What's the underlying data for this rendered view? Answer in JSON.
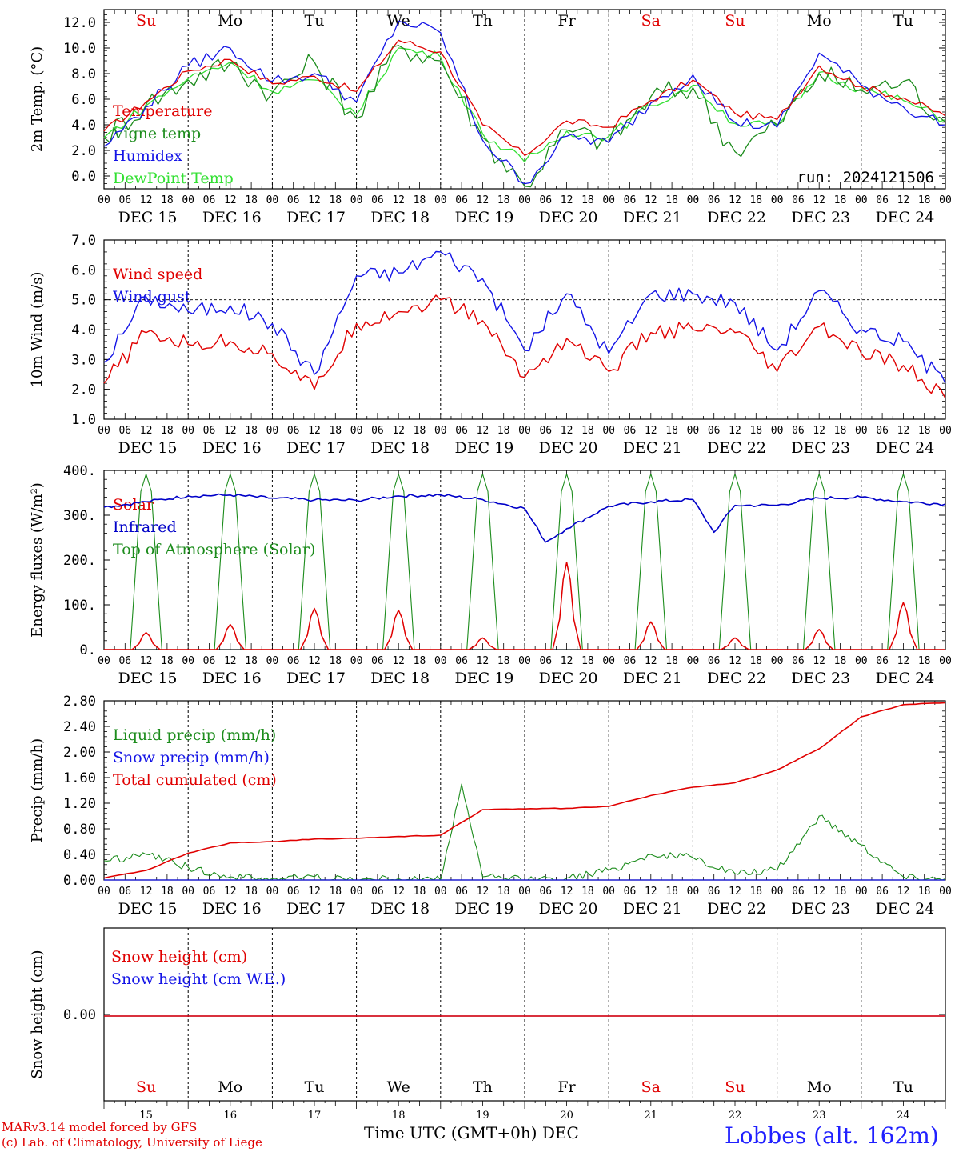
{
  "run_label": "run: 2024121506",
  "weekday_labels": [
    "Su",
    "Mo",
    "Tu",
    "We",
    "Th",
    "Fr",
    "Sa",
    "Su",
    "Mo",
    "Tu"
  ],
  "weekday_colors": [
    "#e00000",
    "#000000",
    "#000000",
    "#000000",
    "#000000",
    "#000000",
    "#e00000",
    "#e00000",
    "#000000",
    "#000000"
  ],
  "date_labels": [
    "DEC 15",
    "DEC 16",
    "DEC 17",
    "DEC 18",
    "DEC 19",
    "DEC 20",
    "DEC 21",
    "DEC 22",
    "DEC 23",
    "DEC 24"
  ],
  "hour_ticks": [
    "00",
    "06",
    "12",
    "18"
  ],
  "bottom_day_numbers": [
    "15",
    "16",
    "17",
    "18",
    "19",
    "20",
    "21",
    "22",
    "23",
    "24"
  ],
  "x_axis_title": "Time UTC (GMT+0h)",
  "x_axis_month": "DEC",
  "footer": {
    "model_line": "MARv3.14 model forced by GFS",
    "copyright_line": "(c) Lab. of Climatology, University of Liege",
    "station": "Lobbes (alt. 162m)"
  },
  "colors": {
    "red": "#e00000",
    "blue": "#1414e6",
    "green": "#1c8c1c",
    "lightgreen": "#33e033",
    "darkblue": "#0000c8"
  },
  "chart_data": [
    {
      "type": "line",
      "ylabel": "2m Temp. (°C)",
      "ylim": [
        -1.0,
        13.0
      ],
      "yticks": [
        "0.0",
        "2.0",
        "4.0",
        "6.0",
        "8.0",
        "10.0",
        "12.0"
      ],
      "x_start": "2024-12-15 00:00",
      "x_end": "2024-12-25 00:00",
      "x": [
        "2024-12-15 00:00",
        "2024-12-15 12:00",
        "2024-12-16 00:00",
        "2024-12-16 12:00",
        "2024-12-17 00:00",
        "2024-12-17 12:00",
        "2024-12-18 00:00",
        "2024-12-18 12:00",
        "2024-12-19 00:00",
        "2024-12-19 12:00",
        "2024-12-20 00:00",
        "2024-12-20 12:00",
        "2024-12-21 00:00",
        "2024-12-21 12:00",
        "2024-12-22 00:00",
        "2024-12-22 12:00",
        "2024-12-23 00:00",
        "2024-12-23 12:00",
        "2024-12-24 00:00",
        "2024-12-24 12:00",
        "2024-12-25 00:00"
      ],
      "series": [
        {
          "name": "Temperature",
          "color": "#e00000",
          "values": [
            3.5,
            5.8,
            8.2,
            9.1,
            7.2,
            7.8,
            6.6,
            10.6,
            9.7,
            4.0,
            1.6,
            4.3,
            3.8,
            5.9,
            7.5,
            4.9,
            4.4,
            8.6,
            7.0,
            6.1,
            4.7
          ]
        },
        {
          "name": "Vigne temp",
          "color": "#1c8c1c",
          "values": [
            3.0,
            5.6,
            7.5,
            8.8,
            6.5,
            8.9,
            4.5,
            10.2,
            9.0,
            3.0,
            -0.8,
            3.6,
            2.6,
            6.2,
            6.9,
            1.9,
            4.0,
            8.0,
            6.7,
            7.4,
            4.2
          ]
        },
        {
          "name": "Humidex",
          "color": "#1414e6",
          "values": [
            2.3,
            5.4,
            8.6,
            10.0,
            7.4,
            8.0,
            5.8,
            12.1,
            11.2,
            2.8,
            -0.6,
            3.1,
            2.6,
            5.7,
            7.9,
            4.2,
            3.8,
            9.6,
            7.1,
            5.4,
            4.0
          ]
        },
        {
          "name": "DewPoint Temp",
          "color": "#33e033",
          "values": [
            3.0,
            5.5,
            7.6,
            8.9,
            6.6,
            7.5,
            4.8,
            10.0,
            9.3,
            3.3,
            1.1,
            3.5,
            3.1,
            5.5,
            7.1,
            4.1,
            3.9,
            8.1,
            6.8,
            5.9,
            4.4
          ]
        }
      ]
    },
    {
      "type": "line",
      "ylabel": "10m Wind (m/s)",
      "ylim": [
        1.0,
        7.0
      ],
      "yticks": [
        "1.0",
        "2.0",
        "3.0",
        "4.0",
        "5.0",
        "6.0",
        "7.0"
      ],
      "reference_line": 5.0,
      "x": [
        "2024-12-15 00:00",
        "2024-12-15 12:00",
        "2024-12-16 00:00",
        "2024-12-16 12:00",
        "2024-12-17 00:00",
        "2024-12-17 12:00",
        "2024-12-18 00:00",
        "2024-12-18 12:00",
        "2024-12-19 00:00",
        "2024-12-19 12:00",
        "2024-12-20 00:00",
        "2024-12-20 12:00",
        "2024-12-21 00:00",
        "2024-12-21 12:00",
        "2024-12-22 00:00",
        "2024-12-22 12:00",
        "2024-12-23 00:00",
        "2024-12-23 12:00",
        "2024-12-24 00:00",
        "2024-12-24 12:00",
        "2024-12-25 00:00"
      ],
      "series": [
        {
          "name": "Wind speed",
          "color": "#e00000",
          "values": [
            2.2,
            3.9,
            3.5,
            3.6,
            3.2,
            2.0,
            4.2,
            4.6,
            5.0,
            4.3,
            2.4,
            3.7,
            2.6,
            3.9,
            4.0,
            3.9,
            2.6,
            4.1,
            3.2,
            2.8,
            1.7
          ]
        },
        {
          "name": "Wind gust",
          "color": "#1414e6",
          "values": [
            2.9,
            5.1,
            4.6,
            4.8,
            4.2,
            2.5,
            5.8,
            5.9,
            6.6,
            5.7,
            3.3,
            5.2,
            3.2,
            5.2,
            5.2,
            4.9,
            3.3,
            5.3,
            4.0,
            3.6,
            2.2
          ]
        }
      ]
    },
    {
      "type": "line",
      "ylabel": "Energy fluxes (W/m²)",
      "ylim": [
        0,
        400
      ],
      "yticks": [
        "0.",
        "100.",
        "200.",
        "300.",
        "400."
      ],
      "x_start": "2024-12-15 00:00",
      "x_end": "2024-12-25 00:00",
      "series": [
        {
          "name": "Solar",
          "color": "#e00000",
          "daily_peaks": [
            38,
            56,
            92,
            88,
            26,
            195,
            62,
            26,
            45,
            105
          ]
        },
        {
          "name": "Infrared",
          "color": "#0000c8",
          "x": [
            "2024-12-15 00:00",
            "2024-12-15 12:00",
            "2024-12-16 00:00",
            "2024-12-16 12:00",
            "2024-12-17 00:00",
            "2024-12-17 12:00",
            "2024-12-18 00:00",
            "2024-12-18 12:00",
            "2024-12-19 00:00",
            "2024-12-19 12:00",
            "2024-12-20 00:00",
            "2024-12-20 06:00",
            "2024-12-20 12:00",
            "2024-12-21 00:00",
            "2024-12-21 12:00",
            "2024-12-22 00:00",
            "2024-12-22 06:00",
            "2024-12-22 12:00",
            "2024-12-23 00:00",
            "2024-12-23 12:00",
            "2024-12-24 00:00",
            "2024-12-24 12:00",
            "2024-12-25 00:00"
          ],
          "values": [
            318,
            330,
            343,
            345,
            338,
            334,
            333,
            343,
            345,
            335,
            315,
            240,
            270,
            320,
            330,
            335,
            262,
            322,
            322,
            338,
            340,
            330,
            325
          ]
        },
        {
          "name": "Top of Atmosphere (Solar)",
          "color": "#1c8c1c",
          "daily_peaks": [
            392,
            392,
            392,
            392,
            392,
            392,
            392,
            392,
            392,
            392
          ]
        }
      ]
    },
    {
      "type": "line",
      "ylabel": "Precip (mm/h)",
      "ylim": [
        0.0,
        2.8
      ],
      "yticks": [
        "0.00",
        "0.40",
        "0.80",
        "1.20",
        "1.60",
        "2.00",
        "2.40",
        "2.80"
      ],
      "x": [
        "2024-12-15 00:00",
        "2024-12-15 12:00",
        "2024-12-16 00:00",
        "2024-12-16 12:00",
        "2024-12-17 00:00",
        "2024-12-17 12:00",
        "2024-12-18 00:00",
        "2024-12-18 12:00",
        "2024-12-19 00:00",
        "2024-12-19 06:00",
        "2024-12-19 12:00",
        "2024-12-20 00:00",
        "2024-12-20 12:00",
        "2024-12-21 00:00",
        "2024-12-21 12:00",
        "2024-12-22 00:00",
        "2024-12-22 12:00",
        "2024-12-23 00:00",
        "2024-12-23 12:00",
        "2024-12-24 00:00",
        "2024-12-24 12:00",
        "2024-12-25 00:00"
      ],
      "series": [
        {
          "name": "Liquid precip (mm/h)",
          "color": "#1c8c1c",
          "values": [
            0.3,
            0.4,
            0.2,
            0.05,
            0.02,
            0.05,
            0.0,
            0.02,
            0.0,
            1.5,
            0.05,
            0.0,
            0.03,
            0.15,
            0.4,
            0.35,
            0.1,
            0.15,
            1.0,
            0.55,
            0.05,
            0.02
          ]
        },
        {
          "name": "Snow precip (mm/h)",
          "color": "#1414e6",
          "values": [
            0.0,
            0.0,
            0.0,
            0.0,
            0.0,
            0.0,
            0.0,
            0.0,
            0.0,
            0.0,
            0.0,
            0.0,
            0.0,
            0.0,
            0.0,
            0.0,
            0.0,
            0.0,
            0.0,
            0.0,
            0.0,
            0.0
          ]
        },
        {
          "name": "Total cumulated (cm)",
          "color": "#e00000",
          "values": [
            0.03,
            0.15,
            0.42,
            0.58,
            0.6,
            0.64,
            0.65,
            0.68,
            0.7,
            0.9,
            1.1,
            1.11,
            1.12,
            1.15,
            1.32,
            1.45,
            1.52,
            1.72,
            2.05,
            2.55,
            2.74,
            2.77
          ]
        }
      ]
    },
    {
      "type": "line",
      "ylabel": "Snow height (cm)",
      "yticks": [
        "0.00"
      ],
      "series": [
        {
          "name": "Snow height (cm)",
          "color": "#e00000",
          "values": [
            0.0,
            0.0
          ]
        },
        {
          "name": "Snow height (cm W.E.)",
          "color": "#1414e6",
          "values": [
            0.0,
            0.0
          ]
        }
      ]
    }
  ]
}
